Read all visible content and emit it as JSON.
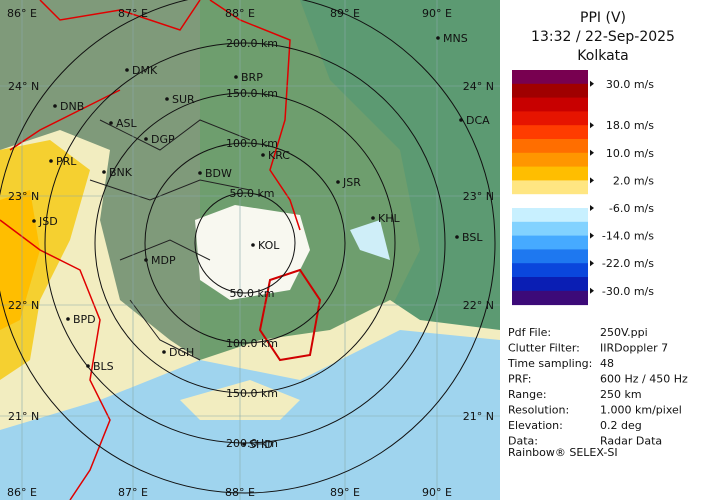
{
  "header": {
    "title": "PPI (V)",
    "time": "13:32 / 22-Sep-2025",
    "site": "Kolkata"
  },
  "legend": {
    "colors": [
      "#780050",
      "#a00000",
      "#c80000",
      "#e61400",
      "#ff3c00",
      "#ff6e00",
      "#ff9600",
      "#ffbe00",
      "#ffe682",
      "#ffffff",
      "#c8f0ff",
      "#82d2ff",
      "#46aaff",
      "#1e78f0",
      "#0a46dc",
      "#0a1eb4",
      "#3c0a78"
    ],
    "labels": [
      "30.0 m/s",
      "18.0 m/s",
      "10.0 m/s",
      "2.0 m/s",
      "-6.0 m/s",
      "-14.0 m/s",
      "-22.0 m/s",
      "-30.0 m/s"
    ]
  },
  "info": [
    [
      "Pdf File:",
      "250V.ppi"
    ],
    [
      "Clutter Filter:",
      "IIRDoppler 7"
    ],
    [
      "Time sampling:",
      "48"
    ],
    [
      "PRF:",
      "600 Hz / 450 Hz"
    ],
    [
      "Range:",
      "250 km"
    ],
    [
      "Resolution:",
      "1.000 km/pixel"
    ],
    [
      "Elevation:",
      "0.2 deg"
    ],
    [
      "Data:",
      "Radar Data"
    ]
  ],
  "footer": "Rainbow® SELEX-SI",
  "map": {
    "longitudes": [
      "86° E",
      "87° E",
      "88° E",
      "89° E",
      "90° E"
    ],
    "latitudes": [
      "24° N",
      "23° N",
      "22° N",
      "21° N"
    ],
    "rings": [
      "50.0 km",
      "100.0 km",
      "150.0 km",
      "200.0 km"
    ],
    "cities": [
      "MNS",
      "DMK",
      "BRP",
      "DNB",
      "SUR",
      "DCA",
      "ASL",
      "DGP",
      "KRC",
      "PRL",
      "BNK",
      "BDW",
      "JSR",
      "KHL",
      "JSD",
      "KOL",
      "BSL",
      "MDP",
      "BPD",
      "DGH",
      "BLS",
      "SHD"
    ]
  }
}
